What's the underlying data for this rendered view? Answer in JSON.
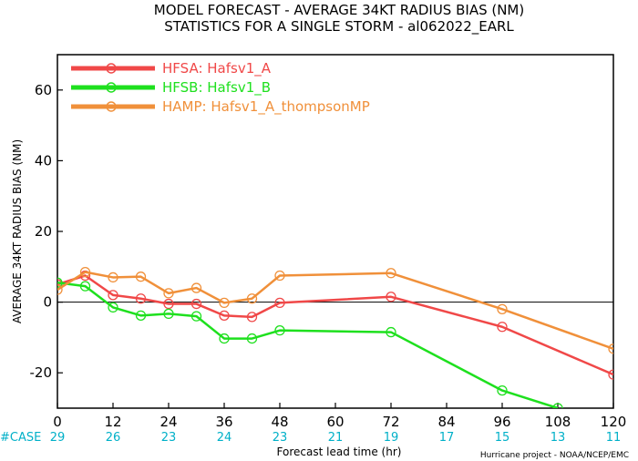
{
  "chart_data": {
    "type": "line",
    "title_line1": "MODEL FORECAST - AVERAGE 34KT RADIUS BIAS (NM)",
    "title_line2": "STATISTICS FOR A SINGLE STORM - al062022_EARL",
    "ylabel": "AVERAGE 34KT RADIUS BIAS (NM)",
    "xlabel": "Forecast lead time (hr)",
    "credit": "Hurricane project - NOAA/NCEP/EMC",
    "case_label": "#CASE",
    "xlim": [
      0,
      120
    ],
    "ylim": [
      -30,
      70
    ],
    "x_ticks": [
      0,
      12,
      24,
      36,
      48,
      60,
      72,
      84,
      96,
      108,
      120
    ],
    "y_ticks": [
      -20,
      0,
      20,
      40,
      60
    ],
    "zero_line": true,
    "cases": [
      {
        "x": 0,
        "n": "29"
      },
      {
        "x": 12,
        "n": "26"
      },
      {
        "x": 24,
        "n": "23"
      },
      {
        "x": 36,
        "n": "24"
      },
      {
        "x": 48,
        "n": "23"
      },
      {
        "x": 60,
        "n": "21"
      },
      {
        "x": 72,
        "n": "19"
      },
      {
        "x": 84,
        "n": "17"
      },
      {
        "x": 96,
        "n": "15"
      },
      {
        "x": 108,
        "n": "13"
      },
      {
        "x": 120,
        "n": "11"
      }
    ],
    "series": [
      {
        "name": "HFSA: Hafsv1_A",
        "color": "#f04848",
        "points": [
          [
            0,
            5
          ],
          [
            6,
            7.5
          ],
          [
            12,
            2
          ],
          [
            18,
            1
          ],
          [
            24,
            -0.5
          ],
          [
            30,
            -0.5
          ],
          [
            36,
            -3.8
          ],
          [
            42,
            -4.2
          ],
          [
            48,
            -0.2
          ],
          [
            72,
            1.5
          ],
          [
            96,
            -7
          ],
          [
            120,
            -20.5
          ]
        ]
      },
      {
        "name": "HFSB: Hafsv1_B",
        "color": "#1ee01e",
        "points": [
          [
            0,
            5.5
          ],
          [
            6,
            4.5
          ],
          [
            12,
            -1.5
          ],
          [
            18,
            -3.8
          ],
          [
            24,
            -3.3
          ],
          [
            30,
            -4
          ],
          [
            36,
            -10.3
          ],
          [
            42,
            -10.3
          ],
          [
            48,
            -8
          ],
          [
            72,
            -8.5
          ],
          [
            96,
            -25
          ],
          [
            108,
            -30
          ]
        ]
      },
      {
        "name": "HAMP: Hafsv1_A_thompsonMP",
        "color": "#f0903a",
        "points": [
          [
            0,
            3.5
          ],
          [
            6,
            8.5
          ],
          [
            12,
            7
          ],
          [
            18,
            7.2
          ],
          [
            24,
            2.5
          ],
          [
            30,
            4
          ],
          [
            36,
            -0.2
          ],
          [
            42,
            1
          ],
          [
            48,
            7.5
          ],
          [
            72,
            8.2
          ],
          [
            96,
            -2
          ],
          [
            120,
            -13.2
          ]
        ]
      }
    ]
  }
}
